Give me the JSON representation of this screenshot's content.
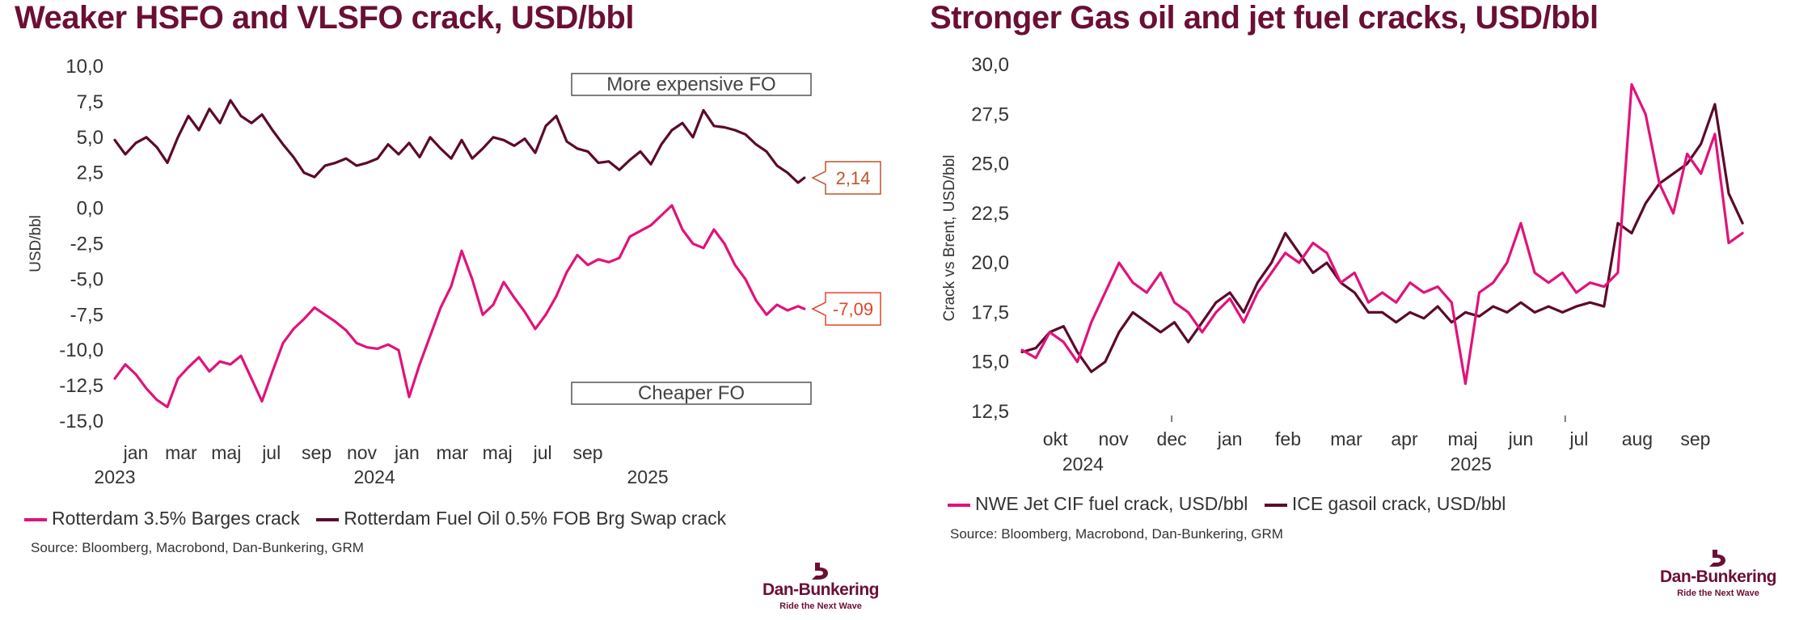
{
  "left": {
    "title": "Weaker HSFO and VLSFO crack, USD/bbl",
    "source": "Source: Bloomberg, Macrobond, Dan-Bunkering, GRM",
    "chart_data": {
      "type": "line",
      "ylabel": "USD/bbl",
      "ylim": [
        -15,
        10
      ],
      "yticks": [
        "10,0",
        "7,5",
        "5,0",
        "2,5",
        "0,0",
        "-2,5",
        "-5,0",
        "-7,5",
        "-10,0",
        "-12,5",
        "-15,0"
      ],
      "xticks": [
        "jan",
        "mar",
        "maj",
        "jul",
        "sep",
        "nov",
        "jan",
        "mar",
        "maj",
        "jul",
        "sep"
      ],
      "years": [
        "2023",
        "2024",
        "2025"
      ],
      "annotations": {
        "top": "More expensive FO",
        "bottom": "Cheaper FO"
      },
      "callouts": {
        "vlsfo": "2,14",
        "hsfo": "-7,09"
      },
      "series": [
        {
          "name": "Rotterdam 3.5% Barges crack",
          "color": "#e2127a",
          "x": [
            0,
            0.5,
            1,
            1.5,
            2,
            2.5,
            3,
            3.5,
            4,
            4.5,
            5,
            5.5,
            6,
            6.5,
            7,
            7.5,
            8,
            8.5,
            9,
            9.5,
            10,
            10.5,
            11,
            11.5,
            12,
            12.5,
            13,
            13.5,
            14,
            14.5,
            15,
            15.5,
            16,
            16.5,
            17,
            17.5,
            18,
            18.5,
            19,
            19.5,
            20,
            20.5,
            21,
            21.5,
            22,
            22.5,
            23,
            23.5,
            24,
            24.5,
            25,
            25.5,
            26,
            26.5,
            27,
            27.5,
            28,
            28.5,
            29,
            29.5,
            30,
            30.5,
            31,
            31.5,
            32,
            32.5,
            32.8
          ],
          "values": [
            -12.0,
            -11.0,
            -11.7,
            -12.7,
            -13.5,
            -14.0,
            -12.0,
            -11.2,
            -10.5,
            -11.5,
            -10.8,
            -11.0,
            -10.4,
            -12.0,
            -13.6,
            -11.5,
            -9.5,
            -8.5,
            -7.8,
            -7.0,
            -7.5,
            -8.0,
            -8.6,
            -9.5,
            -9.8,
            -9.9,
            -9.6,
            -10.0,
            -13.3,
            -11.0,
            -9.0,
            -7.0,
            -5.5,
            -3.0,
            -5.0,
            -7.5,
            -6.8,
            -5.2,
            -6.3,
            -7.3,
            -8.5,
            -7.5,
            -6.2,
            -4.5,
            -3.3,
            -4.0,
            -3.6,
            -3.8,
            -3.5,
            -2.0,
            -1.6,
            -1.2,
            -0.5,
            0.2,
            -1.5,
            -2.5,
            -2.8,
            -1.5,
            -2.5,
            -4.0,
            -5.0,
            -6.5,
            -7.5,
            -6.8,
            -7.2,
            -6.9,
            -7.09
          ]
        },
        {
          "name": "Rotterdam Fuel Oil 0.5% FOB Brg Swap crack",
          "color": "#5c0a2c",
          "x": [
            0,
            0.5,
            1,
            1.5,
            2,
            2.5,
            3,
            3.5,
            4,
            4.5,
            5,
            5.5,
            6,
            6.5,
            7,
            7.5,
            8,
            8.5,
            9,
            9.5,
            10,
            10.5,
            11,
            11.5,
            12,
            12.5,
            13,
            13.5,
            14,
            14.5,
            15,
            15.5,
            16,
            16.5,
            17,
            17.5,
            18,
            18.5,
            19,
            19.5,
            20,
            20.5,
            21,
            21.5,
            22,
            22.5,
            23,
            23.5,
            24,
            24.5,
            25,
            25.5,
            26,
            26.5,
            27,
            27.5,
            28,
            28.5,
            29,
            29.5,
            30,
            30.5,
            31,
            31.5,
            32,
            32.5,
            32.8
          ],
          "values": [
            4.8,
            3.8,
            4.6,
            5.0,
            4.3,
            3.2,
            5.0,
            6.5,
            5.5,
            7.0,
            6.0,
            7.6,
            6.5,
            6.0,
            6.6,
            5.5,
            4.5,
            3.6,
            2.5,
            2.2,
            3.0,
            3.2,
            3.5,
            3.0,
            3.2,
            3.5,
            4.5,
            3.8,
            4.6,
            3.6,
            5.0,
            4.2,
            3.5,
            4.8,
            3.5,
            4.2,
            5.0,
            4.8,
            4.4,
            4.9,
            3.9,
            5.8,
            6.5,
            4.7,
            4.2,
            4.0,
            3.2,
            3.3,
            2.7,
            3.4,
            4.0,
            3.1,
            4.5,
            5.5,
            6.0,
            5.0,
            6.9,
            5.8,
            5.7,
            5.5,
            5.2,
            4.5,
            4.0,
            3.0,
            2.5,
            1.8,
            2.14
          ]
        }
      ]
    }
  },
  "right": {
    "title": "Stronger Gas oil and jet fuel cracks, USD/bbl",
    "source": "Source: Bloomberg, Macrobond, Dan-Bunkering, GRM",
    "chart_data": {
      "type": "line",
      "ylabel": "Crack vs Brent, USD/bbl",
      "ylim": [
        12.5,
        30
      ],
      "yticks": [
        "30,0",
        "27,5",
        "25,0",
        "22,5",
        "20,0",
        "17,5",
        "15,0",
        "12,5"
      ],
      "xticks": [
        "okt",
        "nov",
        "dec",
        "jan",
        "feb",
        "mar",
        "apr",
        "maj",
        "jun",
        "jul",
        "aug",
        "sep"
      ],
      "years": [
        "2024",
        "2025"
      ],
      "series": [
        {
          "name": "NWE Jet CIF fuel crack, USD/bbl",
          "color": "#e2127a",
          "x": [
            0,
            0.25,
            0.5,
            0.75,
            1,
            1.25,
            1.5,
            1.75,
            2,
            2.25,
            2.5,
            2.75,
            3,
            3.25,
            3.5,
            3.75,
            4,
            4.25,
            4.5,
            4.75,
            5,
            5.25,
            5.5,
            5.75,
            6,
            6.25,
            6.5,
            6.75,
            7,
            7.25,
            7.5,
            7.75,
            8,
            8.25,
            8.5,
            8.75,
            9,
            9.25,
            9.5,
            9.75,
            10,
            10.25,
            10.5,
            10.75,
            11,
            11.25,
            11.5,
            11.75,
            12,
            12.25,
            12.5,
            12.75,
            13
          ],
          "values": [
            15.6,
            15.2,
            16.5,
            16.0,
            15.0,
            17.0,
            18.5,
            20.0,
            19.0,
            18.5,
            19.5,
            18.0,
            17.5,
            16.5,
            17.5,
            18.2,
            17.0,
            18.5,
            19.5,
            20.5,
            20.0,
            21.0,
            20.5,
            19.0,
            19.5,
            18.0,
            18.5,
            18.0,
            19.0,
            18.5,
            18.8,
            18.0,
            13.9,
            18.5,
            19.0,
            20.0,
            22.0,
            19.5,
            19.0,
            19.5,
            18.5,
            19.0,
            18.8,
            19.5,
            29.0,
            27.5,
            24.0,
            22.5,
            25.5,
            24.5,
            26.5,
            21.0,
            21.5
          ]
        },
        {
          "name": "ICE gasoil crack, USD/bbl",
          "color": "#5c0a2c",
          "x": [
            0,
            0.25,
            0.5,
            0.75,
            1,
            1.25,
            1.5,
            1.75,
            2,
            2.25,
            2.5,
            2.75,
            3,
            3.25,
            3.5,
            3.75,
            4,
            4.25,
            4.5,
            4.75,
            5,
            5.25,
            5.5,
            5.75,
            6,
            6.25,
            6.5,
            6.75,
            7,
            7.25,
            7.5,
            7.75,
            8,
            8.25,
            8.5,
            8.75,
            9,
            9.25,
            9.5,
            9.75,
            10,
            10.25,
            10.5,
            10.75,
            11,
            11.25,
            11.5,
            11.75,
            12,
            12.25,
            12.5,
            12.75,
            13
          ],
          "values": [
            15.5,
            15.7,
            16.5,
            16.8,
            15.5,
            14.5,
            15.0,
            16.5,
            17.5,
            17.0,
            16.5,
            17.0,
            16.0,
            17.0,
            18.0,
            18.5,
            17.5,
            19.0,
            20.0,
            21.5,
            20.5,
            19.5,
            20.0,
            19.0,
            18.5,
            17.5,
            17.5,
            17.0,
            17.5,
            17.2,
            17.8,
            17.0,
            17.5,
            17.3,
            17.8,
            17.5,
            18.0,
            17.5,
            17.8,
            17.5,
            17.8,
            18.0,
            17.8,
            22.0,
            21.5,
            23.0,
            24.0,
            24.5,
            25.0,
            26.0,
            28.0,
            23.5,
            22.0
          ]
        }
      ]
    }
  },
  "logo": {
    "name": "Dan-Bunkering",
    "tagline": "Ride the Next Wave"
  }
}
